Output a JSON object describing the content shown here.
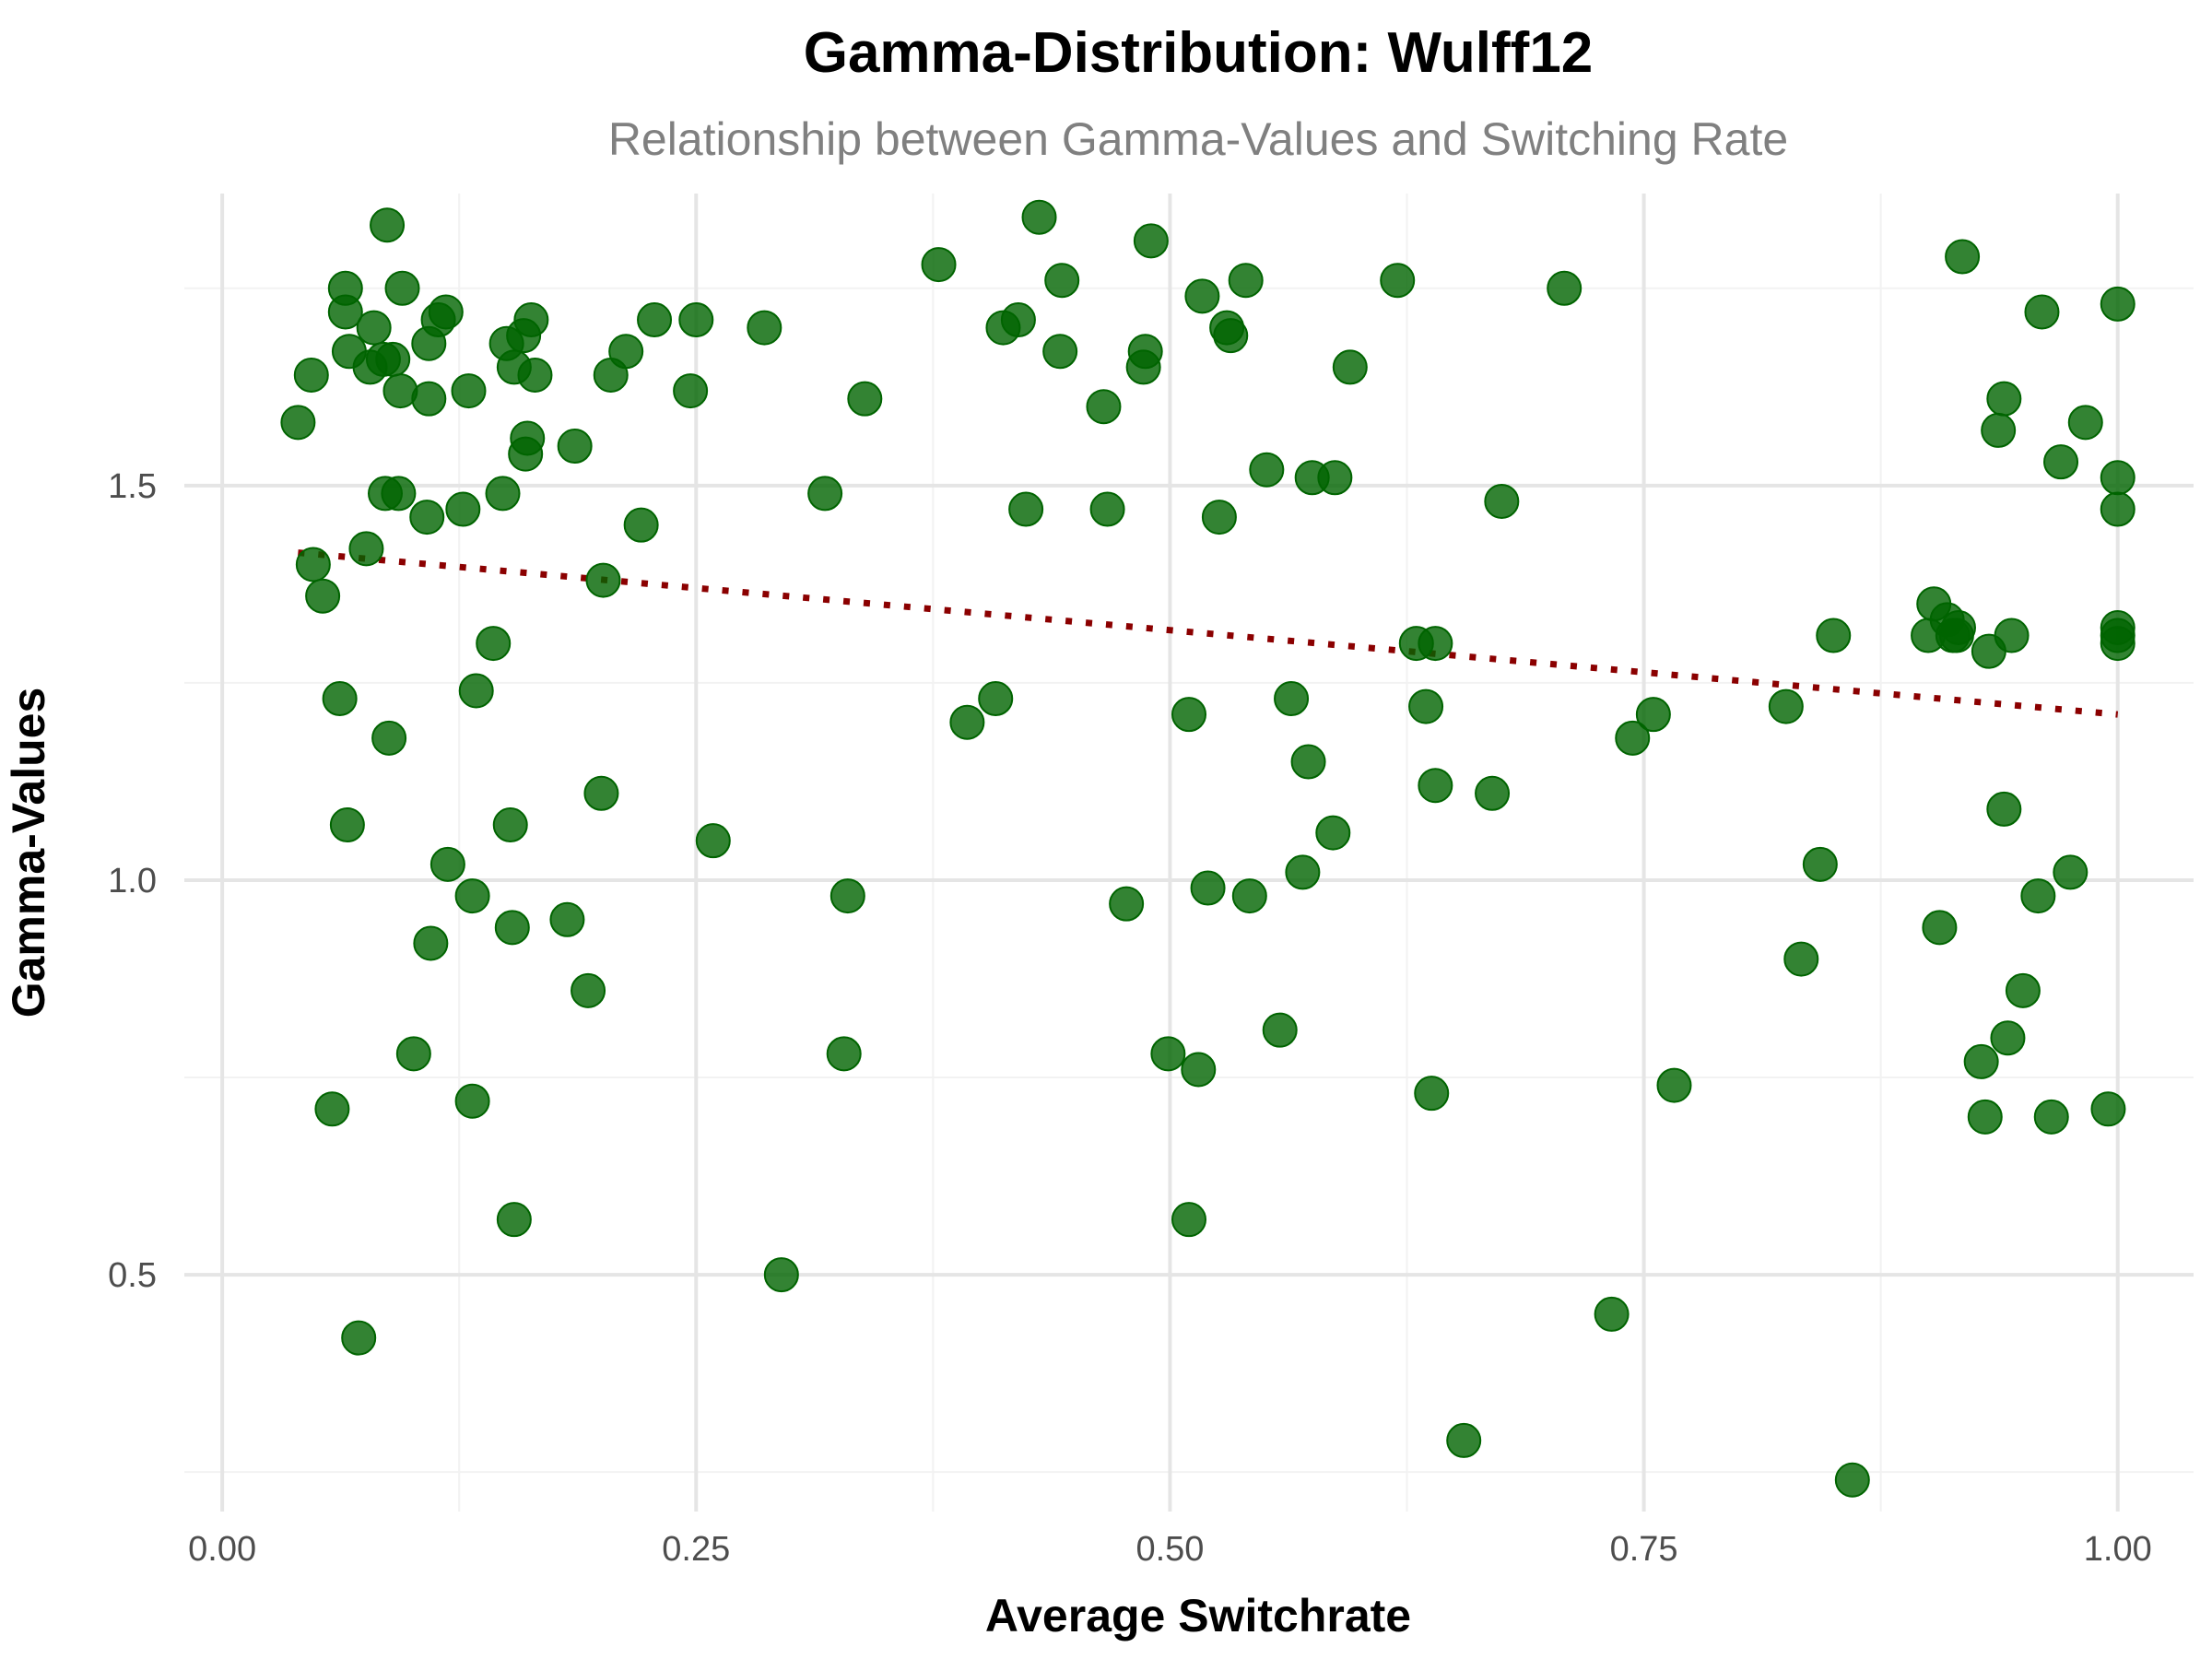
{
  "chart_data": {
    "type": "scatter",
    "title": "Gamma-Distribution: Wulff12",
    "subtitle": "Relationship between Gamma-Values and Switching Rate",
    "xlabel": "Average Switchrate",
    "ylabel": "Gamma-Values",
    "xlim": [
      -0.02,
      1.04
    ],
    "ylim": [
      0.2,
      1.87
    ],
    "x_ticks": [
      {
        "value": 0,
        "label": "0.00"
      },
      {
        "value": 0.25,
        "label": "0.25"
      },
      {
        "value": 0.5,
        "label": "0.50"
      },
      {
        "value": 0.75,
        "label": "0.75"
      },
      {
        "value": 1.0,
        "label": "1.00"
      }
    ],
    "y_ticks": [
      {
        "value": 0.5,
        "label": "0.5"
      },
      {
        "value": 1.0,
        "label": "1.0"
      },
      {
        "value": 1.5,
        "label": "1.5"
      }
    ],
    "grid": true,
    "point_color": "#006400",
    "trend_color": "#8b0000",
    "trend_line": {
      "x": [
        0.04,
        1.0
      ],
      "y": [
        1.415,
        1.21
      ]
    },
    "points": [
      [
        0.04,
        1.58
      ],
      [
        0.047,
        1.64
      ],
      [
        0.048,
        1.4
      ],
      [
        0.053,
        1.36
      ],
      [
        0.058,
        0.71
      ],
      [
        0.062,
        1.23
      ],
      [
        0.065,
        1.75
      ],
      [
        0.065,
        1.72
      ],
      [
        0.066,
        1.07
      ],
      [
        0.067,
        1.67
      ],
      [
        0.072,
        0.42
      ],
      [
        0.076,
        1.42
      ],
      [
        0.078,
        1.65
      ],
      [
        0.08,
        1.7
      ],
      [
        0.085,
        1.66
      ],
      [
        0.086,
        1.49
      ],
      [
        0.087,
        1.83
      ],
      [
        0.088,
        1.18
      ],
      [
        0.09,
        1.66
      ],
      [
        0.093,
        1.49
      ],
      [
        0.094,
        1.62
      ],
      [
        0.095,
        1.75
      ],
      [
        0.101,
        0.78
      ],
      [
        0.108,
        1.46
      ],
      [
        0.109,
        1.68
      ],
      [
        0.109,
        1.61
      ],
      [
        0.11,
        0.92
      ],
      [
        0.114,
        1.71
      ],
      [
        0.118,
        1.72
      ],
      [
        0.119,
        1.02
      ],
      [
        0.127,
        1.47
      ],
      [
        0.13,
        1.62
      ],
      [
        0.132,
        0.72
      ],
      [
        0.132,
        0.98
      ],
      [
        0.134,
        1.24
      ],
      [
        0.143,
        1.3
      ],
      [
        0.148,
        1.49
      ],
      [
        0.15,
        1.68
      ],
      [
        0.152,
        1.07
      ],
      [
        0.153,
        0.94
      ],
      [
        0.154,
        1.65
      ],
      [
        0.154,
        0.57
      ],
      [
        0.159,
        1.69
      ],
      [
        0.16,
        1.54
      ],
      [
        0.161,
        1.56
      ],
      [
        0.163,
        1.71
      ],
      [
        0.165,
        1.64
      ],
      [
        0.182,
        0.95
      ],
      [
        0.186,
        1.55
      ],
      [
        0.193,
        0.86
      ],
      [
        0.2,
        1.11
      ],
      [
        0.201,
        1.38
      ],
      [
        0.205,
        1.64
      ],
      [
        0.213,
        1.67
      ],
      [
        0.221,
        1.45
      ],
      [
        0.228,
        1.71
      ],
      [
        0.247,
        1.62
      ],
      [
        0.25,
        1.71
      ],
      [
        0.259,
        1.05
      ],
      [
        0.286,
        1.7
      ],
      [
        0.295,
        0.5
      ],
      [
        0.318,
        1.49
      ],
      [
        0.328,
        0.78
      ],
      [
        0.33,
        0.98
      ],
      [
        0.339,
        1.61
      ],
      [
        0.378,
        1.78
      ],
      [
        0.393,
        1.2
      ],
      [
        0.408,
        1.23
      ],
      [
        0.412,
        1.7
      ],
      [
        0.42,
        1.71
      ],
      [
        0.424,
        1.47
      ],
      [
        0.431,
        1.84
      ],
      [
        0.442,
        1.67
      ],
      [
        0.443,
        1.76
      ],
      [
        0.465,
        1.6
      ],
      [
        0.467,
        1.47
      ],
      [
        0.477,
        0.97
      ],
      [
        0.486,
        1.65
      ],
      [
        0.487,
        1.67
      ],
      [
        0.49,
        1.81
      ],
      [
        0.499,
        0.78
      ],
      [
        0.51,
        1.21
      ],
      [
        0.51,
        0.57
      ],
      [
        0.515,
        0.76
      ],
      [
        0.517,
        1.74
      ],
      [
        0.52,
        0.99
      ],
      [
        0.526,
        1.46
      ],
      [
        0.53,
        1.7
      ],
      [
        0.532,
        1.69
      ],
      [
        0.54,
        1.76
      ],
      [
        0.542,
        0.98
      ],
      [
        0.551,
        1.52
      ],
      [
        0.558,
        0.81
      ],
      [
        0.564,
        1.23
      ],
      [
        0.57,
        1.01
      ],
      [
        0.573,
        1.15
      ],
      [
        0.575,
        1.51
      ],
      [
        0.586,
        1.06
      ],
      [
        0.587,
        1.51
      ],
      [
        0.595,
        1.65
      ],
      [
        0.62,
        1.76
      ],
      [
        0.63,
        1.3
      ],
      [
        0.635,
        1.22
      ],
      [
        0.638,
        0.73
      ],
      [
        0.64,
        1.3
      ],
      [
        0.64,
        1.12
      ],
      [
        0.655,
        0.29
      ],
      [
        0.67,
        1.11
      ],
      [
        0.675,
        1.48
      ],
      [
        0.708,
        1.75
      ],
      [
        0.733,
        0.45
      ],
      [
        0.744,
        1.18
      ],
      [
        0.755,
        1.21
      ],
      [
        0.766,
        0.74
      ],
      [
        0.825,
        1.22
      ],
      [
        0.833,
        0.9
      ],
      [
        0.843,
        1.02
      ],
      [
        0.85,
        1.31
      ],
      [
        0.86,
        0.24
      ],
      [
        0.9,
        1.31
      ],
      [
        0.903,
        1.35
      ],
      [
        0.906,
        0.94
      ],
      [
        0.91,
        1.33
      ],
      [
        0.913,
        1.31
      ],
      [
        0.915,
        1.31
      ],
      [
        0.916,
        1.32
      ],
      [
        0.918,
        1.79
      ],
      [
        0.928,
        0.77
      ],
      [
        0.93,
        0.7
      ],
      [
        0.932,
        1.29
      ],
      [
        0.937,
        1.57
      ],
      [
        0.94,
        1.61
      ],
      [
        0.94,
        1.09
      ],
      [
        0.942,
        0.8
      ],
      [
        0.944,
        1.31
      ],
      [
        0.95,
        0.86
      ],
      [
        0.958,
        0.98
      ],
      [
        0.96,
        1.72
      ],
      [
        0.965,
        0.7
      ],
      [
        0.97,
        1.53
      ],
      [
        0.975,
        1.01
      ],
      [
        0.983,
        1.58
      ],
      [
        0.995,
        0.71
      ],
      [
        1.0,
        1.73
      ],
      [
        1.0,
        1.51
      ],
      [
        1.0,
        1.47
      ],
      [
        1.0,
        1.32
      ],
      [
        1.0,
        1.31
      ],
      [
        1.0,
        1.3
      ]
    ]
  }
}
